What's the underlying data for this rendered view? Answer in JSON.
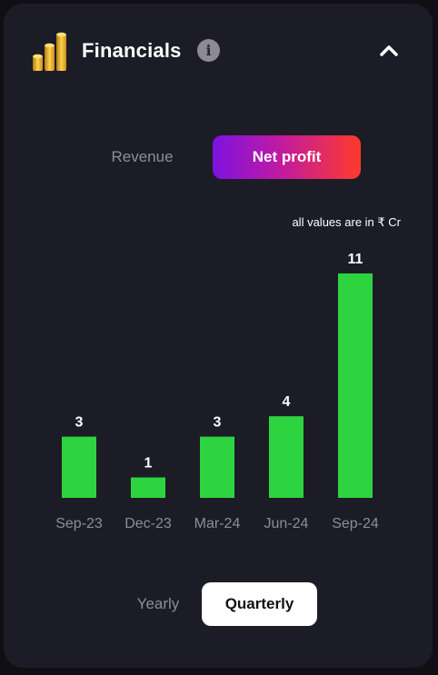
{
  "header": {
    "title": "Financials",
    "info_icon": "info-icon",
    "collapse_icon": "chevron-up-icon"
  },
  "metric_toggle": {
    "options": [
      "Revenue",
      "Net profit"
    ],
    "selected": "Net profit"
  },
  "unit_note": "all values are in ₹ Cr",
  "period_toggle": {
    "options": [
      "Yearly",
      "Quarterly"
    ],
    "selected": "Quarterly"
  },
  "colors": {
    "bar": "#2ed43f",
    "card_bg": "#1c1c27",
    "gradient_start": "#7c12e0",
    "gradient_end": "#ff3a2a"
  },
  "chart_data": {
    "type": "bar",
    "categories": [
      "Sep-23",
      "Dec-23",
      "Mar-24",
      "Jun-24",
      "Sep-24"
    ],
    "values": [
      3,
      1,
      3,
      4,
      11
    ],
    "data_labels": [
      "3",
      "1",
      "3",
      "4",
      "11"
    ],
    "ylim": [
      0,
      11
    ],
    "grid": false,
    "legend": "none"
  }
}
